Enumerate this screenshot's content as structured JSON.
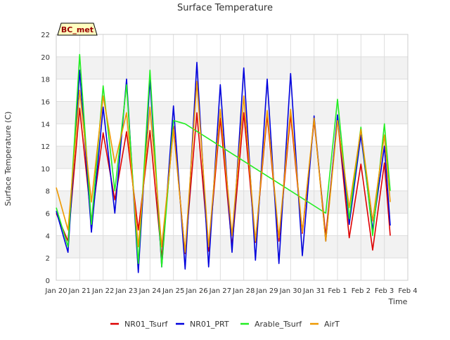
{
  "chart_data": {
    "type": "line",
    "title": "Surface Temperature",
    "xlabel": "Time",
    "ylabel": "Surface Temperature (C)",
    "ylim": [
      0,
      22
    ],
    "xlim": [
      "2025-01-20",
      "2025-02-04"
    ],
    "grid": true,
    "legend_position": "bottom",
    "badge": "BC_met",
    "x_ticks": [
      "Jan 20",
      "Jan 21",
      "Jan 22",
      "Jan 23",
      "Jan 24",
      "Jan 25",
      "Jan 26",
      "Jan 27",
      "Jan 28",
      "Jan 29",
      "Jan 30",
      "Jan 31",
      "Feb 1",
      "Feb 2",
      "Feb 3",
      "Feb 4"
    ],
    "y_ticks": [
      0,
      2,
      4,
      6,
      8,
      10,
      12,
      14,
      16,
      18,
      20,
      22
    ],
    "colors": {
      "NR01_Tsurf": "#dd0000",
      "NR01_PRT": "#0000dd",
      "Arable_Tsurf": "#22ee22",
      "AirT": "#ee9900",
      "band": "#f2f2f2",
      "grid": "#dddddd",
      "badge_fill": "#ffffc0",
      "badge_text": "#990000"
    },
    "x_dates": [
      "2025-01-20 00:00",
      "2025-01-20 12:00",
      "2025-01-21 00:00",
      "2025-01-21 12:00",
      "2025-01-22 00:00",
      "2025-01-22 12:00",
      "2025-01-23 00:00",
      "2025-01-23 12:00",
      "2025-01-24 00:00",
      "2025-01-24 12:00",
      "2025-01-25 00:00",
      "2025-01-25 12:00",
      "2025-01-26 00:00",
      "2025-01-26 12:00",
      "2025-01-27 00:00",
      "2025-01-27 12:00",
      "2025-01-28 00:00",
      "2025-01-28 12:00",
      "2025-01-29 00:00",
      "2025-01-29 12:00",
      "2025-01-30 00:00",
      "2025-01-30 12:00",
      "2025-01-31 00:00",
      "2025-01-31 12:00",
      "2025-02-01 00:00",
      "2025-02-01 12:00",
      "2025-02-02 00:00",
      "2025-02-02 12:00",
      "2025-02-03 00:00",
      "2025-02-03 06:00"
    ],
    "series": [
      {
        "name": "NR01_Tsurf",
        "x": [
          "2025-01-20 00:00",
          "2025-01-20 12:00",
          "2025-01-21 00:00",
          "2025-01-21 12:00",
          "2025-01-22 00:00",
          "2025-01-22 12:00",
          "2025-01-23 00:00",
          "2025-01-23 12:00",
          "2025-01-24 00:00",
          "2025-01-24 12:00",
          "2025-01-25 00:00",
          "2025-01-25 12:00",
          "2025-01-26 00:00",
          "2025-01-26 12:00",
          "2025-01-27 00:00",
          "2025-01-27 12:00",
          "2025-01-28 00:00",
          "2025-01-28 12:00",
          "2025-01-29 00:00",
          "2025-01-29 12:00",
          "2025-01-30 00:00",
          "2025-01-30 12:00",
          "2025-01-31 00:00",
          "2025-01-31 12:00",
          "2025-02-01 00:00",
          "2025-02-01 12:00",
          "2025-02-02 00:00",
          "2025-02-02 12:00",
          "2025-02-03 00:00",
          "2025-02-03 06:00"
        ],
        "y": [
          6.0,
          3.5,
          15.4,
          5.3,
          13.2,
          7.2,
          13.3,
          4.5,
          13.4,
          2.0,
          13.8,
          2.4,
          15.0,
          2.6,
          14.5,
          3.0,
          15.0,
          3.4,
          14.8,
          3.5,
          14.8,
          4.2,
          14.3,
          4.0,
          14.5,
          3.8,
          10.4,
          2.7,
          10.5,
          4.0
        ]
      },
      {
        "name": "NR01_PRT",
        "x": [
          "2025-01-20 00:00",
          "2025-01-20 12:00",
          "2025-01-21 00:00",
          "2025-01-21 12:00",
          "2025-01-22 00:00",
          "2025-01-22 12:00",
          "2025-01-23 00:00",
          "2025-01-23 12:00",
          "2025-01-24 00:00",
          "2025-01-24 12:00",
          "2025-01-25 00:00",
          "2025-01-25 12:00",
          "2025-01-26 00:00",
          "2025-01-26 12:00",
          "2025-01-27 00:00",
          "2025-01-27 12:00",
          "2025-01-28 00:00",
          "2025-01-28 12:00",
          "2025-01-29 00:00",
          "2025-01-29 12:00",
          "2025-01-30 00:00",
          "2025-01-30 12:00",
          "2025-01-31 00:00",
          "2025-01-31 12:00",
          "2025-02-01 00:00",
          "2025-02-01 12:00",
          "2025-02-02 00:00",
          "2025-02-02 12:00",
          "2025-02-03 00:00",
          "2025-02-03 06:00"
        ],
        "y": [
          6.2,
          2.5,
          18.8,
          4.3,
          15.5,
          6.0,
          18.0,
          0.7,
          18.0,
          1.2,
          15.6,
          1.0,
          19.5,
          1.2,
          17.5,
          2.5,
          19.0,
          1.8,
          18.0,
          1.5,
          18.5,
          2.2,
          14.7,
          3.5,
          14.8,
          5.0,
          13.0,
          4.5,
          12.0,
          4.9
        ]
      },
      {
        "name": "Arable_Tsurf",
        "x": [
          "2025-01-20 00:00",
          "2025-01-20 12:00",
          "2025-01-21 00:00",
          "2025-01-21 12:00",
          "2025-01-22 00:00",
          "2025-01-22 12:00",
          "2025-01-23 00:00",
          "2025-01-23 12:00",
          "2025-01-24 00:00",
          "2025-01-24 12:00",
          "2025-01-25 00:00",
          "2025-01-25 12:00",
          "2025-01-31 12:00",
          "2025-02-01 00:00",
          "2025-02-01 12:00",
          "2025-02-02 00:00",
          "2025-02-02 12:00",
          "2025-02-03 00:00",
          "2025-02-03 06:00"
        ],
        "y": [
          6.5,
          3.0,
          20.2,
          5.0,
          17.4,
          8.0,
          17.5,
          1.5,
          18.8,
          1.2,
          14.3,
          14.0,
          6.0,
          16.2,
          5.5,
          13.7,
          4.0,
          14.0,
          8.0
        ]
      },
      {
        "name": "AirT",
        "x": [
          "2025-01-20 00:00",
          "2025-01-20 12:00",
          "2025-01-21 00:00",
          "2025-01-21 12:00",
          "2025-01-22 00:00",
          "2025-01-22 12:00",
          "2025-01-23 00:00",
          "2025-01-23 12:00",
          "2025-01-24 00:00",
          "2025-01-24 12:00",
          "2025-01-25 00:00",
          "2025-01-25 12:00",
          "2025-01-26 00:00",
          "2025-01-26 12:00",
          "2025-01-27 00:00",
          "2025-01-27 12:00",
          "2025-01-28 00:00",
          "2025-01-28 12:00",
          "2025-01-29 00:00",
          "2025-01-29 12:00",
          "2025-01-30 00:00",
          "2025-01-30 12:00",
          "2025-01-31 00:00",
          "2025-01-31 12:00",
          "2025-02-01 00:00",
          "2025-02-01 12:00",
          "2025-02-02 00:00",
          "2025-02-02 12:00",
          "2025-02-03 00:00",
          "2025-02-03 06:00"
        ],
        "y": [
          8.3,
          4.5,
          17.0,
          7.0,
          16.5,
          10.5,
          15.0,
          3.0,
          15.5,
          3.0,
          13.5,
          2.5,
          17.8,
          3.0,
          15.3,
          4.0,
          16.5,
          3.5,
          15.2,
          3.8,
          15.3,
          4.3,
          14.5,
          3.5,
          14.3,
          6.5,
          13.5,
          5.3,
          13.0,
          7.0
        ]
      }
    ]
  }
}
